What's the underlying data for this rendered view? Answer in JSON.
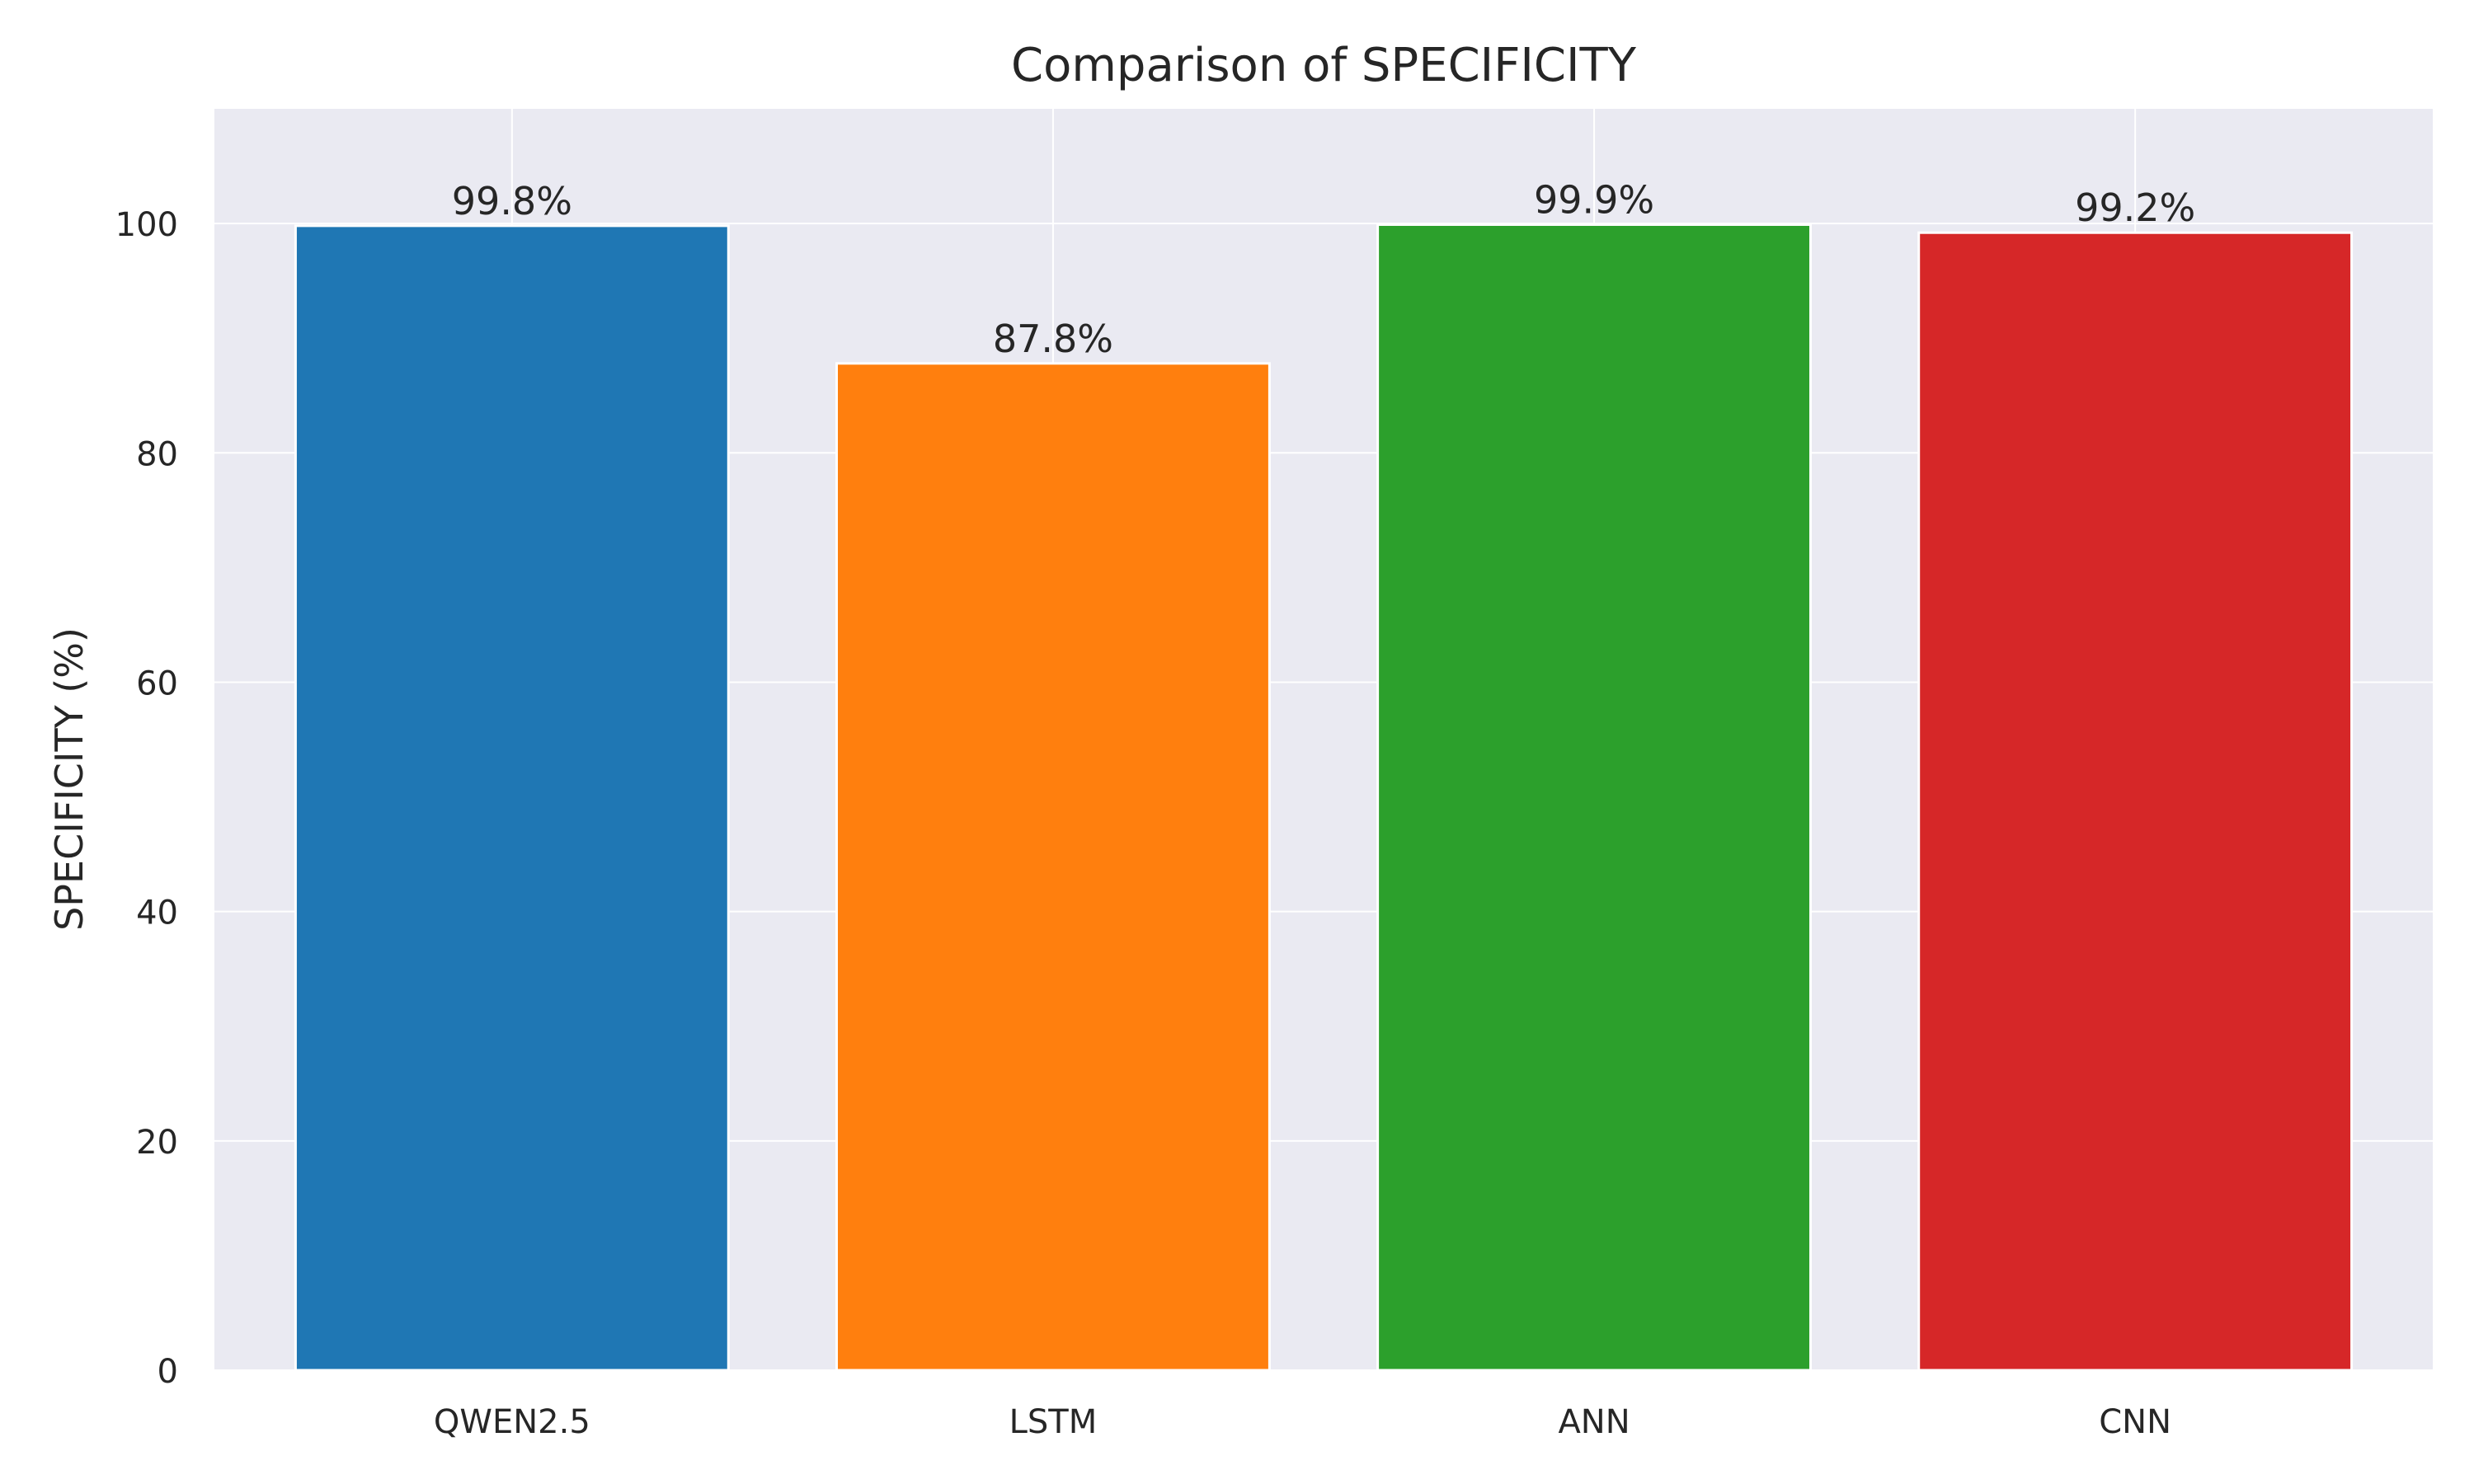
{
  "chart_data": {
    "type": "bar",
    "title": "Comparison of SPECIFICITY",
    "xlabel": "",
    "ylabel": "SPECIFICITY (%)",
    "categories": [
      "QWEN2.5",
      "LSTM",
      "ANN",
      "CNN"
    ],
    "values": [
      99.8,
      87.8,
      99.9,
      99.2
    ],
    "value_labels": [
      "99.8%",
      "87.8%",
      "99.9%",
      "99.2%"
    ],
    "bar_colors": [
      "#1f77b4",
      "#ff7f0e",
      "#2ca02c",
      "#d62728"
    ],
    "ylim": [
      0,
      110
    ],
    "yticks": [
      0,
      20,
      40,
      60,
      80,
      100
    ],
    "ytick_labels": [
      "0",
      "20",
      "40",
      "60",
      "80",
      "100"
    ],
    "grid": true,
    "plot_background": "#eaeaf2",
    "grid_color": "#ffffff"
  }
}
